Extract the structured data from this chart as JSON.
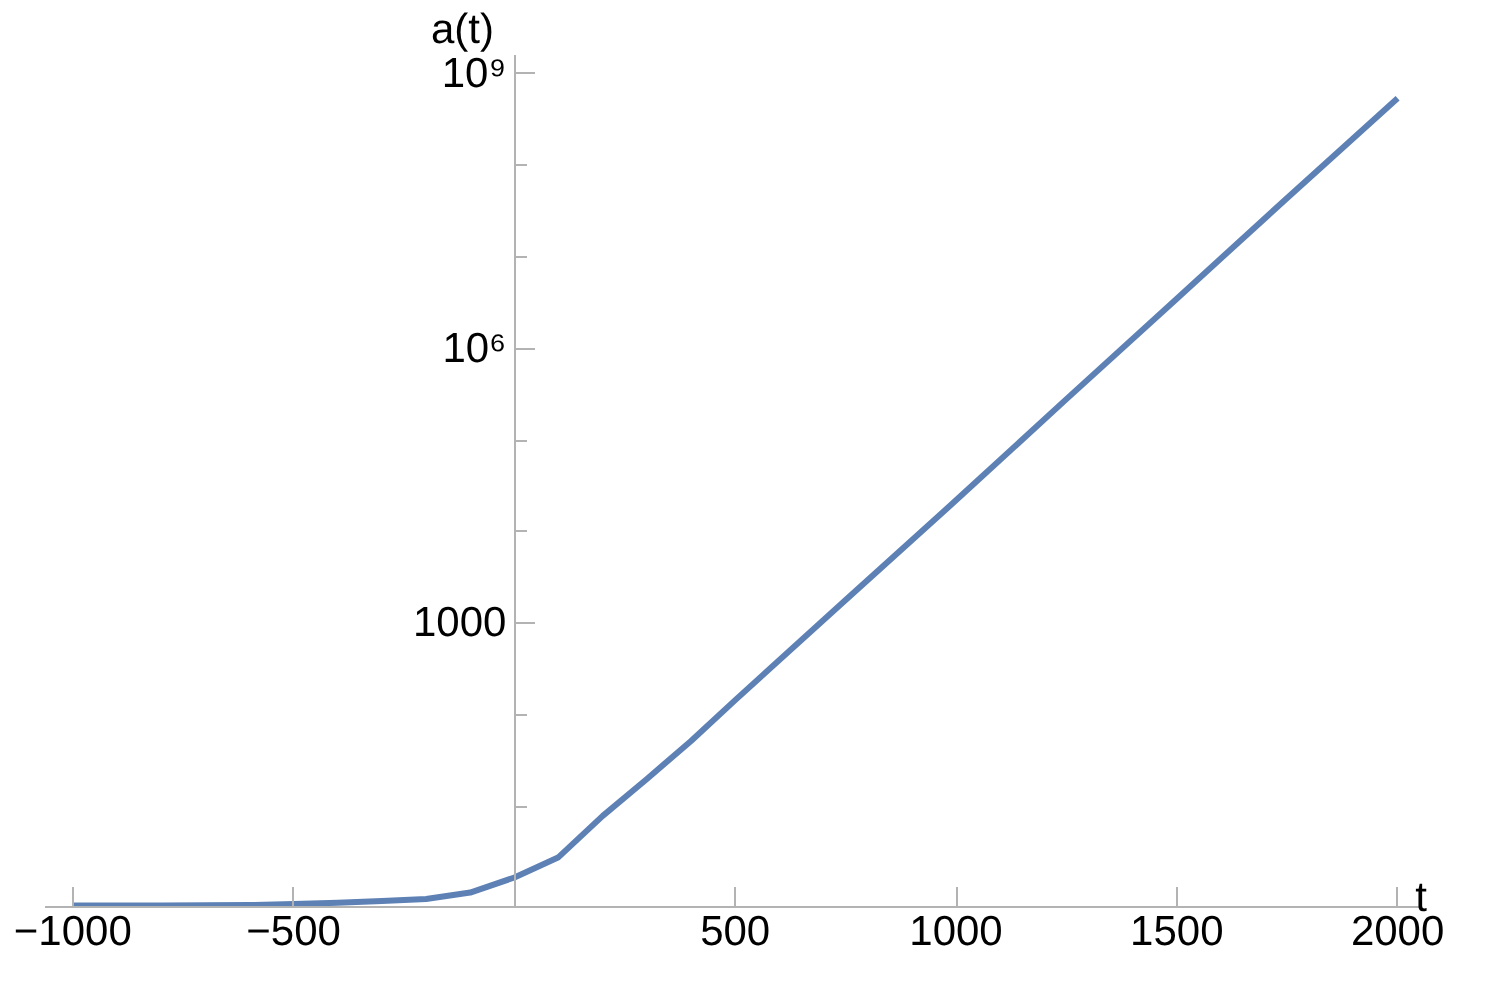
{
  "chart_data": {
    "type": "line",
    "xlabel": "t",
    "ylabel": "a(t)",
    "log": "y",
    "x": [
      -1000,
      -800,
      -600,
      -500,
      -400,
      -300,
      -200,
      -100,
      0,
      100,
      200,
      300,
      400,
      500,
      750,
      1000,
      1250,
      1500,
      1750,
      2000
    ],
    "series": [
      {
        "color": "#5e81b5",
        "values": [
          0.83,
          0.83,
          0.84,
          0.86,
          0.89,
          0.93,
          0.98,
          1.15,
          1.68,
          2.8,
          7.9,
          20,
          52,
          145,
          1800,
          22000,
          280000,
          3500000,
          44000000,
          540000000
        ]
      }
    ],
    "xlim": [
      -1063,
      2053
    ],
    "ylim": [
      0.8,
      1600000000
    ],
    "xticks": [
      {
        "value": -1000,
        "label": "−1000"
      },
      {
        "value": -500,
        "label": "−500"
      },
      {
        "value": 0,
        "label": null
      },
      500,
      1000,
      1500,
      2000
    ],
    "yticks": [
      {
        "value": 10,
        "label": null
      },
      {
        "value": 100,
        "label": null
      },
      1000,
      {
        "value": 10000,
        "label": null
      },
      {
        "value": 100000,
        "label": null
      },
      {
        "value": 1000000,
        "label": "10⁶"
      },
      {
        "value": 10000000,
        "label": null
      },
      {
        "value": 100000000,
        "label": null
      },
      {
        "value": 1000000000,
        "label": "10⁹"
      }
    ],
    "grid": false,
    "line_style": "solid",
    "marker": "none"
  }
}
